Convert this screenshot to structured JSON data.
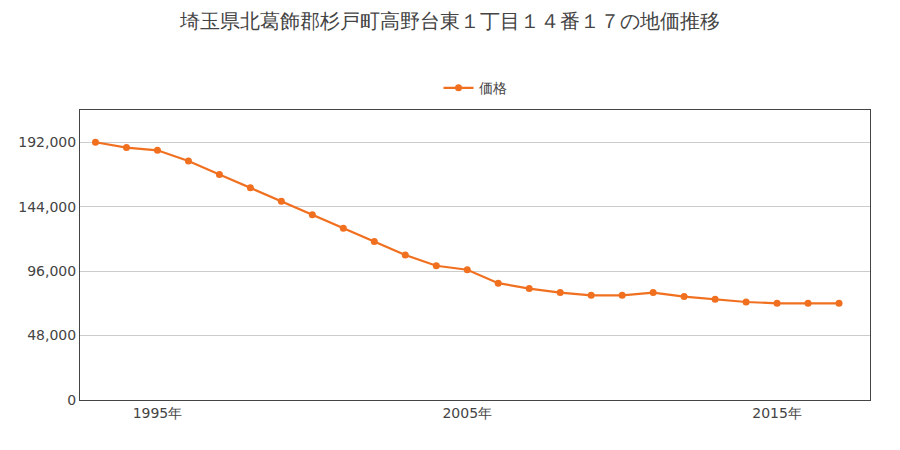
{
  "chart_data": {
    "type": "line",
    "title": "埼玉県北葛飾郡杉戸町高野台東１丁目１４番１７の地価推移",
    "x": [
      1993,
      1994,
      1995,
      1996,
      1997,
      1998,
      1999,
      2000,
      2001,
      2002,
      2003,
      2004,
      2005,
      2006,
      2007,
      2008,
      2009,
      2010,
      2011,
      2012,
      2013,
      2014,
      2015,
      2016,
      2017
    ],
    "series": [
      {
        "name": "価格",
        "color": "#f07020",
        "marker": "circle",
        "values": [
          192000,
          188000,
          186000,
          178000,
          168000,
          158000,
          148000,
          138000,
          128000,
          118000,
          108000,
          100000,
          97000,
          87000,
          83000,
          80000,
          78000,
          78000,
          80000,
          77000,
          75000,
          73000,
          72000,
          72000,
          72000
        ]
      }
    ],
    "xlim": [
      1992.5,
      2018
    ],
    "xticks": [
      {
        "value": 1995,
        "label": "1995年"
      },
      {
        "value": 2005,
        "label": "2005年"
      },
      {
        "value": 2015,
        "label": "2015年"
      }
    ],
    "ylim": [
      0,
      216000
    ],
    "yticks": [
      0,
      {
        "value": 48000,
        "label": "48,000"
      },
      {
        "value": 96000,
        "label": "96,000"
      },
      {
        "value": 144000,
        "label": "144,000"
      },
      {
        "value": 192000,
        "label": "192,000"
      }
    ],
    "grid": "y",
    "legend": "top"
  }
}
